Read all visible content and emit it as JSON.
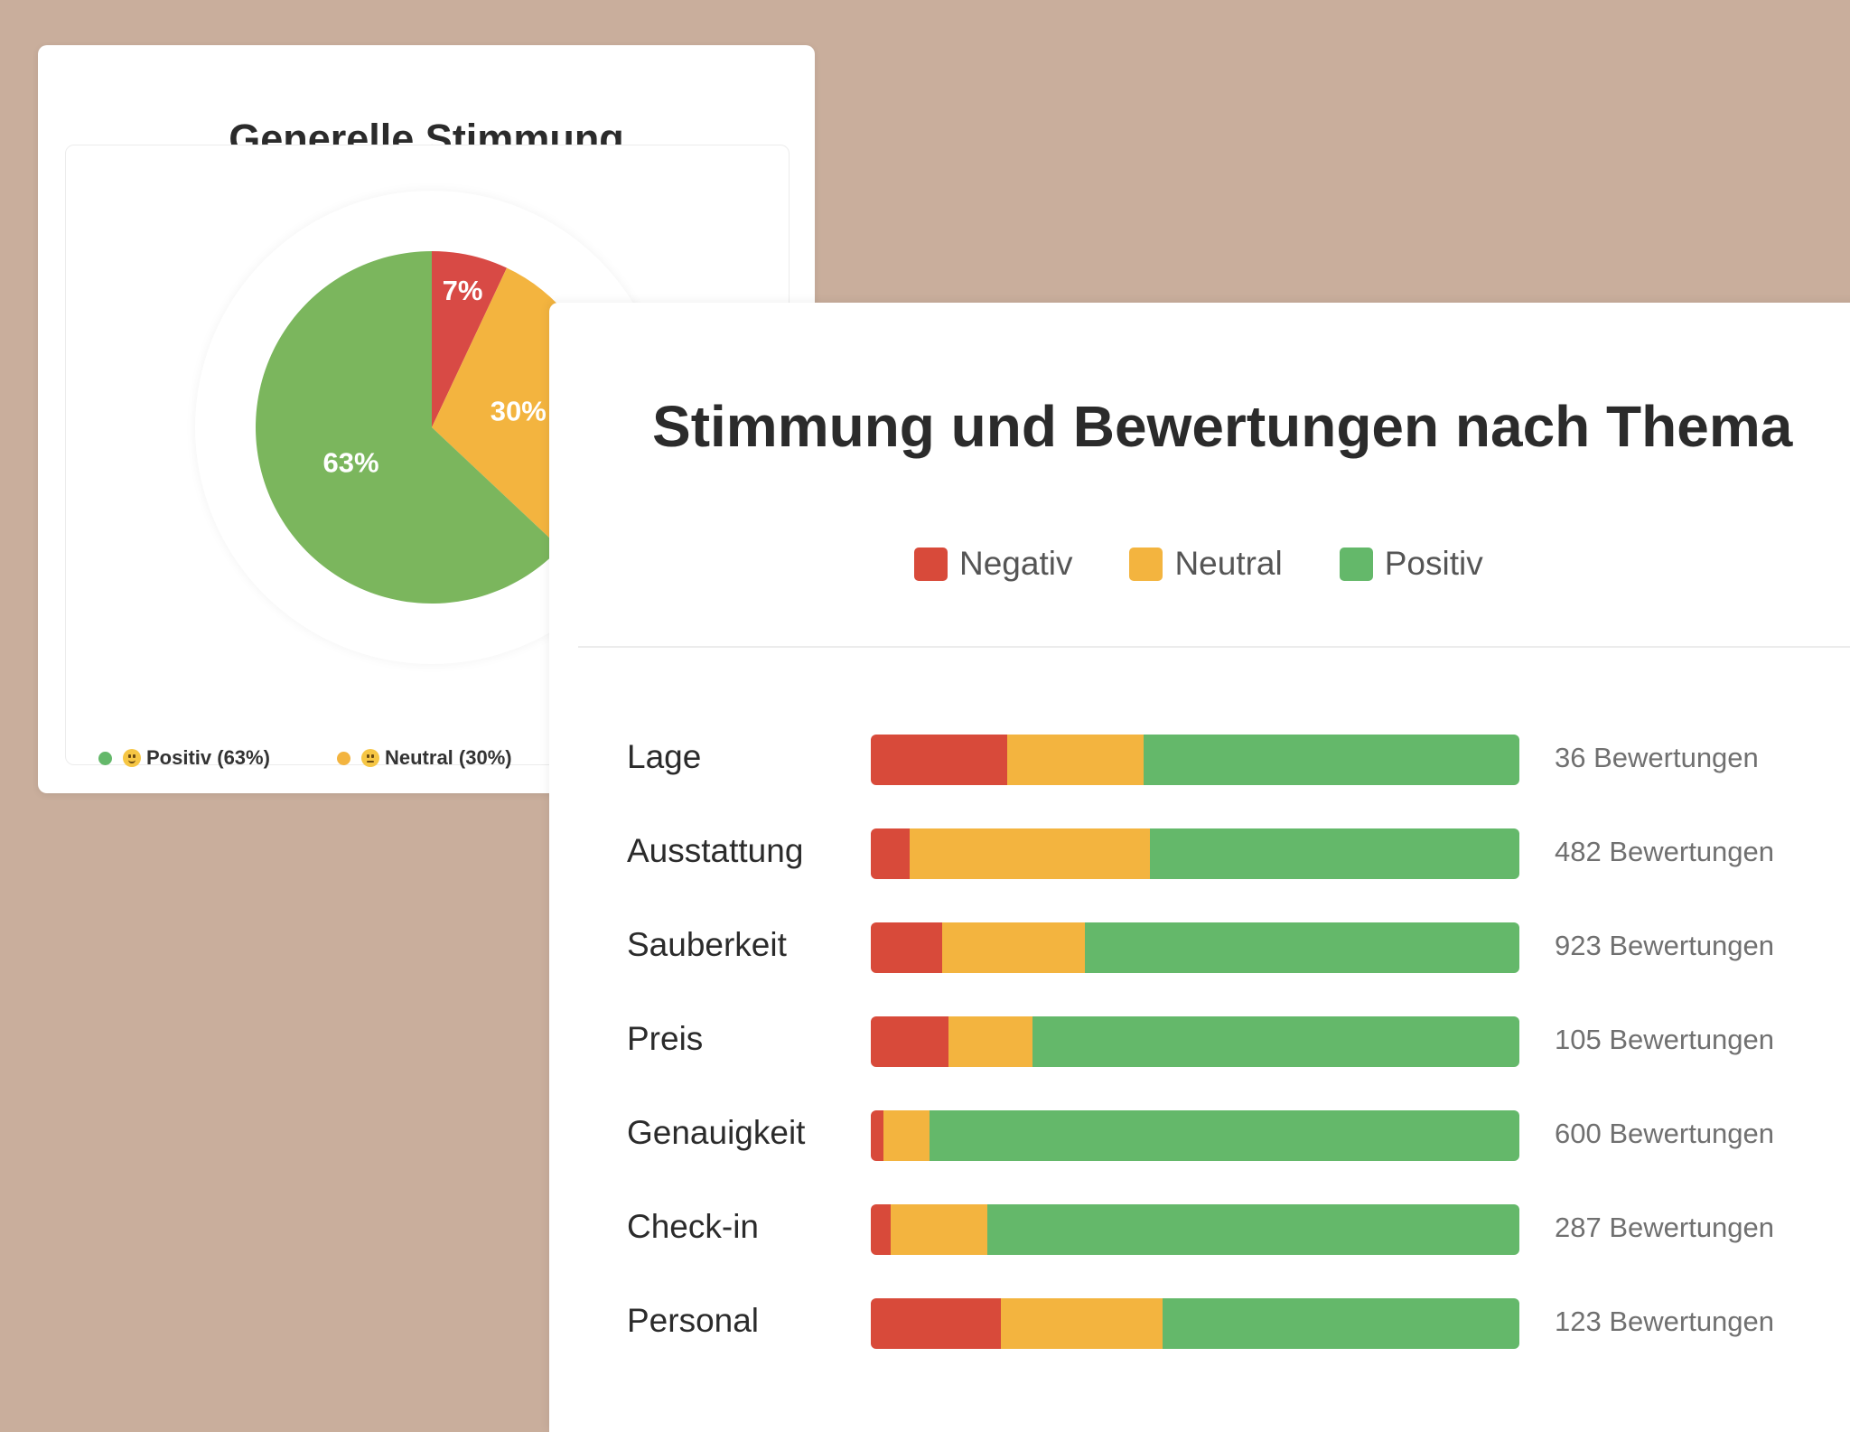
{
  "colors": {
    "negative": "#d84a3a",
    "neutral": "#f3b43f",
    "positive": "#64b86a",
    "pie_positive": "#7bb65d",
    "pie_neutral": "#f3b43f",
    "pie_negative": "#d84a45"
  },
  "pie_card": {
    "title": "Generelle Stimmung",
    "legend": [
      {
        "label": "Positiv (63%)",
        "icon": "smile-emoji-icon"
      },
      {
        "label": "Neutral (30%)",
        "icon": "neutral-emoji-icon"
      }
    ]
  },
  "bar_card": {
    "title": "Stimmung und Bewertungen nach Thema",
    "legend": [
      "Negativ",
      "Neutral",
      "Positiv"
    ]
  },
  "chart_data": [
    {
      "type": "pie",
      "title": "Generelle Stimmung",
      "slices": [
        {
          "name": "Negativ",
          "value": 7,
          "label": "7%"
        },
        {
          "name": "Neutral",
          "value": 30,
          "label": "30%"
        },
        {
          "name": "Positiv",
          "value": 63,
          "label": "63%"
        }
      ]
    },
    {
      "type": "bar",
      "orientation": "horizontal",
      "stacked": true,
      "normalized": true,
      "title": "Stimmung und Bewertungen nach Thema",
      "categories": [
        "Lage",
        "Ausstattung",
        "Sauberkeit",
        "Preis",
        "Genauigkeit",
        "Check-in",
        "Personal"
      ],
      "series": [
        {
          "name": "Negativ",
          "values": [
            21,
            6,
            11,
            12,
            2,
            3,
            20
          ]
        },
        {
          "name": "Neutral",
          "values": [
            21,
            37,
            22,
            13,
            7,
            15,
            25
          ]
        },
        {
          "name": "Positiv",
          "values": [
            58,
            57,
            67,
            75,
            91,
            82,
            55
          ]
        }
      ],
      "counts": [
        "36 Bewertungen",
        "482 Bewertungen",
        "923 Bewertungen",
        "105 Bewertungen",
        "600 Bewertungen",
        "287 Bewertungen",
        "123 Bewertungen"
      ],
      "xlim": [
        0,
        100
      ]
    }
  ]
}
